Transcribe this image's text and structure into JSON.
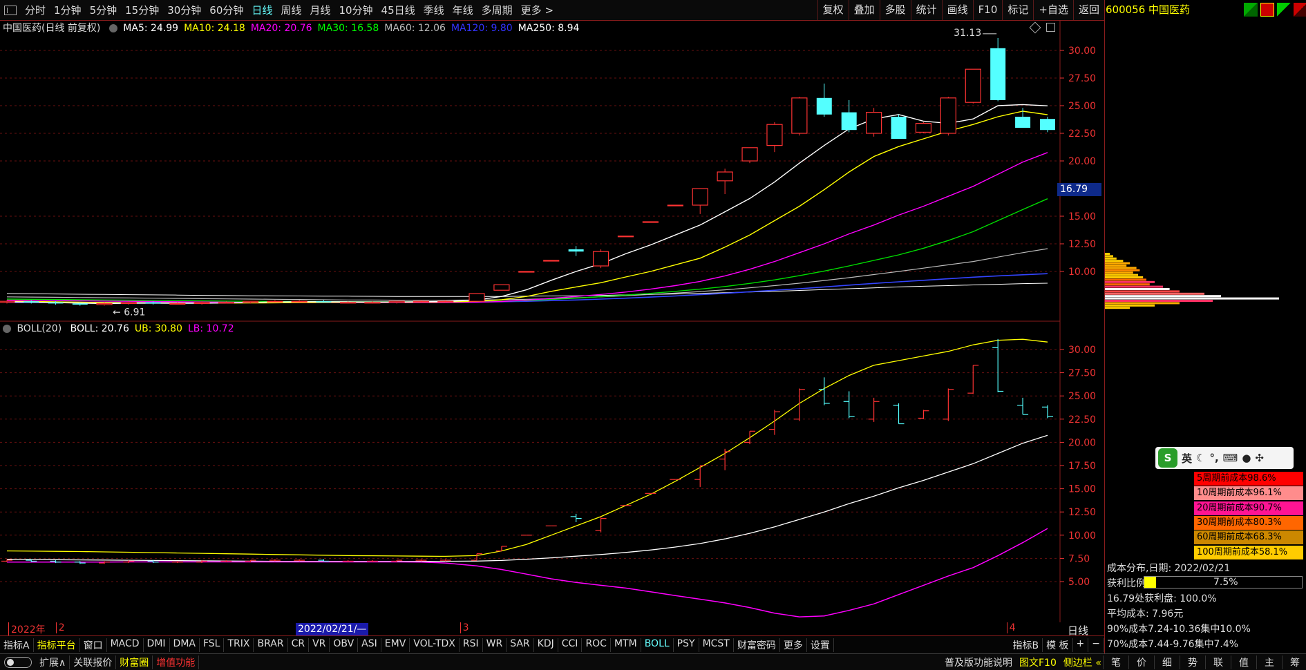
{
  "toolbar": {
    "periods": [
      "分时",
      "1分钟",
      "5分钟",
      "15分钟",
      "30分钟",
      "60分钟",
      "日线",
      "周线",
      "月线",
      "10分钟",
      "45日线",
      "季线",
      "年线",
      "多周期",
      "更多 >"
    ],
    "active_period": "日线",
    "right_buttons": [
      "复权",
      "叠加",
      "多股",
      "统计",
      "画线",
      "F10",
      "标记",
      "+自选",
      "返回"
    ]
  },
  "stock": {
    "code_name": "600056 中国医药"
  },
  "main_chart": {
    "title": "中国医药(日线 前复权)",
    "ma": [
      {
        "label": "MA5: 24.99",
        "color": "#ffffff"
      },
      {
        "label": "MA10: 24.18",
        "color": "#ffff00"
      },
      {
        "label": "MA20: 20.76",
        "color": "#ff00ff"
      },
      {
        "label": "MA30: 16.58",
        "color": "#00ff00"
      },
      {
        "label": "MA60: 12.06",
        "color": "#bbbbbb"
      },
      {
        "label": "MA120: 9.80",
        "color": "#3333ff"
      },
      {
        "label": "MA250: 8.94",
        "color": "#ffffff"
      }
    ],
    "high_label": "31.13",
    "low_label": "6.91",
    "price_box": "16.79",
    "y_ticks": [
      "30.00",
      "27.50",
      "25.00",
      "22.50",
      "20.00",
      "15.00",
      "12.50",
      "10.00"
    ]
  },
  "chart_data": {
    "type": "candlestick",
    "ylim": [
      6,
      32
    ],
    "candles": [
      {
        "o": 7.2,
        "h": 7.4,
        "l": 7.1,
        "c": 7.3
      },
      {
        "o": 7.3,
        "h": 7.4,
        "l": 7.1,
        "c": 7.2
      },
      {
        "o": 7.2,
        "h": 7.3,
        "l": 7.0,
        "c": 7.1
      },
      {
        "o": 7.1,
        "h": 7.2,
        "l": 6.9,
        "c": 7.0
      },
      {
        "o": 7.0,
        "h": 7.2,
        "l": 6.91,
        "c": 7.1
      },
      {
        "o": 7.1,
        "h": 7.3,
        "l": 7.0,
        "c": 7.2
      },
      {
        "o": 7.2,
        "h": 7.3,
        "l": 7.0,
        "c": 7.1
      },
      {
        "o": 7.1,
        "h": 7.2,
        "l": 7.0,
        "c": 7.1
      },
      {
        "o": 7.1,
        "h": 7.3,
        "l": 7.0,
        "c": 7.2
      },
      {
        "o": 7.2,
        "h": 7.3,
        "l": 7.1,
        "c": 7.2
      },
      {
        "o": 7.2,
        "h": 7.3,
        "l": 7.1,
        "c": 7.3
      },
      {
        "o": 7.3,
        "h": 7.4,
        "l": 7.2,
        "c": 7.3
      },
      {
        "o": 7.3,
        "h": 7.4,
        "l": 7.2,
        "c": 7.3
      },
      {
        "o": 7.3,
        "h": 7.4,
        "l": 7.2,
        "c": 7.2
      },
      {
        "o": 7.2,
        "h": 7.3,
        "l": 7.1,
        "c": 7.2
      },
      {
        "o": 7.2,
        "h": 7.3,
        "l": 7.1,
        "c": 7.2
      },
      {
        "o": 7.2,
        "h": 7.3,
        "l": 7.1,
        "c": 7.3
      },
      {
        "o": 7.3,
        "h": 7.4,
        "l": 7.2,
        "c": 7.3
      },
      {
        "o": 7.3,
        "h": 7.4,
        "l": 7.2,
        "c": 7.3
      },
      {
        "o": 7.3,
        "h": 8.0,
        "l": 7.3,
        "c": 8.0
      },
      {
        "o": 8.3,
        "h": 8.8,
        "l": 8.3,
        "c": 8.8
      },
      {
        "o": 10.0,
        "h": 10.0,
        "l": 10.0,
        "c": 10.0
      },
      {
        "o": 11.0,
        "h": 11.0,
        "l": 11.0,
        "c": 11.0
      },
      {
        "o": 12.0,
        "h": 12.3,
        "l": 11.4,
        "c": 11.8
      },
      {
        "o": 10.5,
        "h": 12.0,
        "l": 10.3,
        "c": 11.8
      },
      {
        "o": 13.2,
        "h": 13.2,
        "l": 13.2,
        "c": 13.2
      },
      {
        "o": 14.5,
        "h": 14.5,
        "l": 14.5,
        "c": 14.5
      },
      {
        "o": 16.0,
        "h": 16.0,
        "l": 16.0,
        "c": 16.0
      },
      {
        "o": 16.0,
        "h": 17.5,
        "l": 15.2,
        "c": 17.5
      },
      {
        "o": 18.2,
        "h": 19.3,
        "l": 17.0,
        "c": 19.0
      },
      {
        "o": 20.0,
        "h": 21.2,
        "l": 19.8,
        "c": 21.2
      },
      {
        "o": 21.4,
        "h": 23.5,
        "l": 20.8,
        "c": 23.3
      },
      {
        "o": 22.5,
        "h": 25.8,
        "l": 22.3,
        "c": 25.7
      },
      {
        "o": 25.7,
        "h": 27.0,
        "l": 24.0,
        "c": 24.2
      },
      {
        "o": 24.4,
        "h": 25.5,
        "l": 22.6,
        "c": 22.8
      },
      {
        "o": 22.5,
        "h": 24.8,
        "l": 22.2,
        "c": 24.4
      },
      {
        "o": 24.0,
        "h": 24.2,
        "l": 22.0,
        "c": 22.0
      },
      {
        "o": 22.6,
        "h": 23.5,
        "l": 22.5,
        "c": 23.4
      },
      {
        "o": 22.5,
        "h": 25.8,
        "l": 22.3,
        "c": 25.7
      },
      {
        "o": 25.3,
        "h": 28.3,
        "l": 25.2,
        "c": 28.3
      },
      {
        "o": 30.2,
        "h": 31.13,
        "l": 25.4,
        "c": 25.5
      },
      {
        "o": 24.0,
        "h": 24.8,
        "l": 23.0,
        "c": 23.0
      },
      {
        "o": 23.8,
        "h": 24.0,
        "l": 22.6,
        "c": 22.8
      }
    ],
    "ma5": [
      7.25,
      7.22,
      7.18,
      7.14,
      7.1,
      7.12,
      7.13,
      7.12,
      7.12,
      7.15,
      7.2,
      7.24,
      7.26,
      7.26,
      7.25,
      7.24,
      7.24,
      7.26,
      7.28,
      7.42,
      7.74,
      8.34,
      9.2,
      10.0,
      10.7,
      11.6,
      12.4,
      13.3,
      14.2,
      15.4,
      16.6,
      18.1,
      19.8,
      21.4,
      22.9,
      23.8,
      24.2,
      23.6,
      23.4,
      23.8,
      25.0,
      25.1,
      24.99
    ],
    "ma10": [
      7.3,
      7.28,
      7.25,
      7.22,
      7.19,
      7.17,
      7.16,
      7.15,
      7.14,
      7.14,
      7.15,
      7.16,
      7.18,
      7.2,
      7.21,
      7.22,
      7.22,
      7.23,
      7.24,
      7.3,
      7.44,
      7.74,
      8.2,
      8.6,
      8.98,
      9.5,
      10.0,
      10.6,
      11.2,
      12.2,
      13.3,
      14.6,
      15.9,
      17.4,
      19.0,
      20.4,
      21.3,
      22.0,
      22.7,
      23.3,
      24.0,
      24.5,
      24.18
    ],
    "ma20": [
      7.4,
      7.38,
      7.36,
      7.34,
      7.32,
      7.3,
      7.28,
      7.26,
      7.24,
      7.22,
      7.2,
      7.19,
      7.18,
      7.18,
      7.18,
      7.18,
      7.18,
      7.18,
      7.19,
      7.21,
      7.28,
      7.4,
      7.56,
      7.74,
      7.92,
      8.14,
      8.4,
      8.72,
      9.1,
      9.6,
      10.2,
      10.9,
      11.7,
      12.5,
      13.4,
      14.2,
      15.1,
      15.9,
      16.8,
      17.7,
      18.8,
      19.9,
      20.76
    ],
    "ma30": [
      7.5,
      7.48,
      7.46,
      7.44,
      7.42,
      7.4,
      7.38,
      7.36,
      7.34,
      7.32,
      7.3,
      7.29,
      7.28,
      7.27,
      7.26,
      7.25,
      7.25,
      7.25,
      7.25,
      7.26,
      7.3,
      7.36,
      7.46,
      7.58,
      7.72,
      7.86,
      8.02,
      8.2,
      8.4,
      8.64,
      8.92,
      9.24,
      9.62,
      10.04,
      10.5,
      11.0,
      11.5,
      12.1,
      12.8,
      13.6,
      14.6,
      15.6,
      16.58
    ],
    "ma60": [
      7.7,
      7.68,
      7.66,
      7.64,
      7.62,
      7.6,
      7.58,
      7.56,
      7.54,
      7.52,
      7.5,
      7.48,
      7.46,
      7.44,
      7.42,
      7.41,
      7.4,
      7.4,
      7.4,
      7.41,
      7.44,
      7.48,
      7.54,
      7.62,
      7.7,
      7.8,
      7.92,
      8.04,
      8.18,
      8.34,
      8.52,
      8.72,
      8.94,
      9.18,
      9.44,
      9.72,
      10.0,
      10.3,
      10.6,
      10.9,
      11.3,
      11.7,
      12.06
    ],
    "ma120": [
      7.2,
      7.2,
      7.2,
      7.2,
      7.2,
      7.2,
      7.2,
      7.2,
      7.2,
      7.2,
      7.2,
      7.2,
      7.2,
      7.2,
      7.2,
      7.2,
      7.2,
      7.21,
      7.22,
      7.23,
      7.26,
      7.3,
      7.36,
      7.42,
      7.5,
      7.58,
      7.68,
      7.78,
      7.9,
      8.02,
      8.16,
      8.3,
      8.44,
      8.6,
      8.76,
      8.92,
      9.06,
      9.2,
      9.34,
      9.48,
      9.6,
      9.7,
      9.8
    ],
    "ma250": [
      8.0,
      7.98,
      7.96,
      7.94,
      7.92,
      7.9,
      7.88,
      7.86,
      7.84,
      7.82,
      7.8,
      7.79,
      7.78,
      7.77,
      7.76,
      7.75,
      7.74,
      7.73,
      7.73,
      7.73,
      7.74,
      7.76,
      7.78,
      7.8,
      7.84,
      7.88,
      7.92,
      7.96,
      8.02,
      8.08,
      8.14,
      8.2,
      8.28,
      8.36,
      8.44,
      8.52,
      8.6,
      8.66,
      8.72,
      8.78,
      8.84,
      8.9,
      8.94
    ]
  },
  "boll_panel": {
    "name": "BOLL(20)",
    "labels": [
      {
        "label": "BOLL: 20.76",
        "color": "#ffffff"
      },
      {
        "label": "UB: 30.80",
        "color": "#ffff00"
      },
      {
        "label": "LB: 10.72",
        "color": "#ff00ff"
      }
    ],
    "y_ticks": [
      "30.00",
      "27.50",
      "25.00",
      "22.50",
      "20.00",
      "17.50",
      "15.00",
      "12.50",
      "10.00",
      "7.50",
      "5.00"
    ],
    "ub": [
      8.3,
      8.28,
      8.26,
      8.24,
      8.2,
      8.16,
      8.12,
      8.08,
      8.04,
      8.0,
      7.96,
      7.92,
      7.88,
      7.84,
      7.8,
      7.78,
      7.76,
      7.74,
      7.72,
      7.8,
      8.3,
      9.0,
      10.0,
      11.0,
      12.0,
      13.2,
      14.4,
      15.8,
      17.3,
      18.8,
      20.5,
      22.3,
      24.2,
      25.8,
      27.2,
      28.3,
      28.8,
      29.3,
      29.8,
      30.5,
      31.0,
      31.1,
      30.8
    ],
    "lb": [
      7.1,
      7.1,
      7.1,
      7.1,
      7.1,
      7.12,
      7.12,
      7.12,
      7.12,
      7.12,
      7.12,
      7.12,
      7.12,
      7.12,
      7.12,
      7.12,
      7.12,
      7.1,
      7.0,
      6.7,
      6.3,
      5.8,
      5.3,
      4.9,
      4.6,
      4.3,
      3.9,
      3.5,
      3.1,
      2.7,
      2.2,
      1.6,
      1.2,
      1.3,
      1.9,
      2.6,
      3.6,
      4.6,
      5.6,
      6.5,
      7.8,
      9.2,
      10.72
    ]
  },
  "date_axis": {
    "labels": [
      {
        "text": "2022年",
        "idx": 0
      },
      {
        "text": "2",
        "idx": 2
      },
      {
        "text": "3",
        "idx": 19
      },
      {
        "text": "4",
        "idx": 42
      }
    ],
    "cursor_date": "2022/02/21/—",
    "period_label": "日线"
  },
  "indicator_tabs": [
    "指标A",
    "指标平台",
    "窗口",
    "MACD",
    "DMI",
    "DMA",
    "FSL",
    "TRIX",
    "BRAR",
    "CR",
    "VR",
    "OBV",
    "ASI",
    "EMV",
    "VOL-TDX",
    "RSI",
    "WR",
    "SAR",
    "KDJ",
    "CCI",
    "ROC",
    "MTM",
    "BOLL",
    "PSY",
    "MCST",
    "财富密码",
    "更多",
    "设置"
  ],
  "indicator_right": [
    "指标B",
    "模 板",
    "+",
    "−"
  ],
  "status": {
    "left": [
      "扩展∧",
      "关联报价",
      "财富圈",
      "增值功能"
    ],
    "right_text": "普及版功能说明",
    "right_btns": [
      "图文F10",
      "侧边栏 «"
    ],
    "far_right": [
      "笔",
      "价",
      "细",
      "势",
      "联",
      "值",
      "主",
      "筹"
    ]
  },
  "cost_legend": [
    {
      "label": "5周期前成本98.6%",
      "bg": "#ff0000",
      "color": "#000"
    },
    {
      "label": "10周期前成本96.1%",
      "bg": "#ff8c8c",
      "color": "#000"
    },
    {
      "label": "20周期前成本90.7%",
      "bg": "#ff1493",
      "color": "#000"
    },
    {
      "label": "30周期前成本80.3%",
      "bg": "#ff6600",
      "color": "#000"
    },
    {
      "label": "60周期前成本68.3%",
      "bg": "#cc8800",
      "color": "#000"
    },
    {
      "label": "100周期前成本58.1%",
      "bg": "#ffcc00",
      "color": "#000"
    }
  ],
  "cost_info": {
    "title": "成本分布,日期: 2022/02/21",
    "profit_label": "获利比例:",
    "profit_value": "7.5%",
    "profit_fraction": 0.075,
    "line1": "16.79处获利盘: 100.0%",
    "line2": "平均成本: 7.96元",
    "line3": "90%成本7.24-10.36集中10.0%",
    "line4": "70%成本7.44-9.76集中7.4%"
  },
  "ime": {
    "label": "英"
  }
}
